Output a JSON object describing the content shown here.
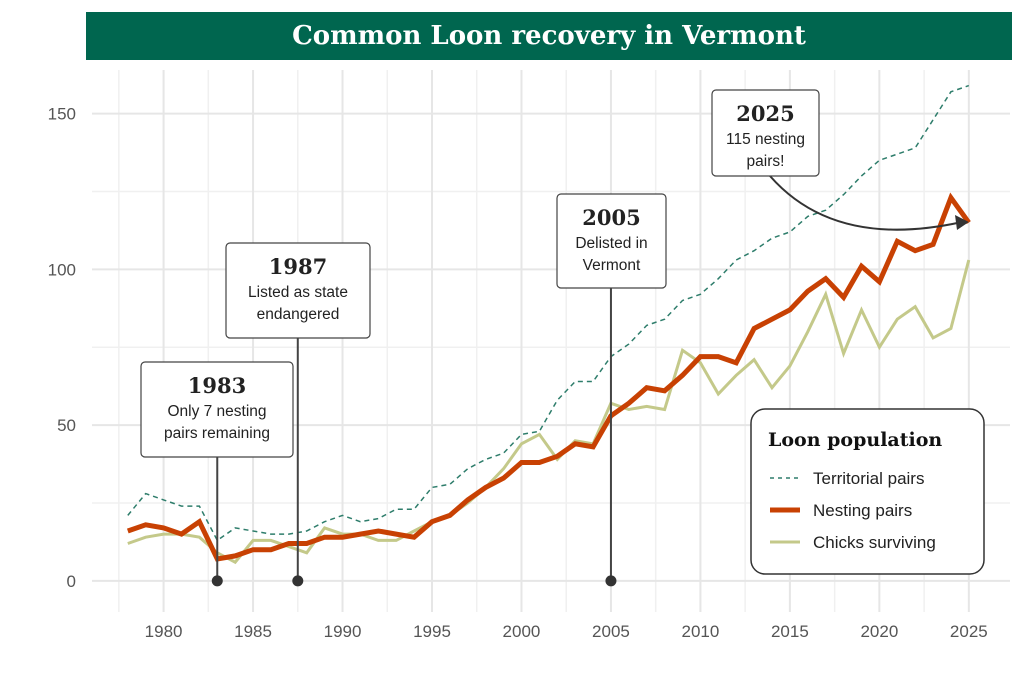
{
  "chart_data": {
    "type": "line",
    "title": "Common Loon recovery in Vermont",
    "xlabel": "",
    "ylabel": "",
    "xlim": [
      1976,
      2027.3
    ],
    "ylim": [
      -10,
      164
    ],
    "grid": true,
    "x_ticks": [
      "1980",
      "1985",
      "1990",
      "1995",
      "2000",
      "2005",
      "2010",
      "2015",
      "2020",
      "2025"
    ],
    "y_ticks": [
      "0",
      "50",
      "100",
      "150"
    ],
    "x": [
      1978,
      1979,
      1980,
      1981,
      1982,
      1983,
      1984,
      1985,
      1986,
      1987,
      1988,
      1989,
      1990,
      1991,
      1992,
      1993,
      1994,
      1995,
      1996,
      1997,
      1998,
      1999,
      2000,
      2001,
      2002,
      2003,
      2004,
      2005,
      2006,
      2007,
      2008,
      2009,
      2010,
      2011,
      2012,
      2013,
      2014,
      2015,
      2016,
      2017,
      2018,
      2019,
      2020,
      2021,
      2022,
      2023,
      2024,
      2025
    ],
    "series": [
      {
        "name": "Territorial pairs",
        "color": "#2e7d6b",
        "style": "dashed",
        "values": [
          21,
          28,
          26,
          24,
          24,
          13,
          17,
          16,
          15,
          15,
          16,
          19,
          21,
          19,
          20,
          23,
          23,
          30,
          31,
          36,
          39,
          41,
          47,
          48,
          58,
          64,
          64,
          72,
          76,
          82,
          84,
          90,
          92,
          97,
          103,
          106,
          110,
          112,
          117,
          119,
          124,
          130,
          135,
          137,
          139,
          148,
          157,
          159
        ]
      },
      {
        "name": "Nesting pairs",
        "color": "#c84103",
        "style": "thick",
        "values": [
          16,
          18,
          17,
          15,
          19,
          7,
          8,
          10,
          10,
          12,
          12,
          14,
          14,
          15,
          16,
          15,
          14,
          19,
          21,
          26,
          30,
          33,
          38,
          38,
          40,
          44,
          43,
          53,
          57,
          62,
          61,
          66,
          72,
          72,
          70,
          81,
          84,
          87,
          93,
          97,
          91,
          101,
          96,
          109,
          106,
          108,
          123,
          115
        ]
      },
      {
        "name": "Chicks surviving",
        "color": "#c4c98a",
        "style": "solid",
        "values": [
          12,
          14,
          15,
          15,
          14,
          9,
          6,
          13,
          13,
          11,
          9,
          17,
          15,
          15,
          13,
          13,
          16,
          19,
          21,
          25,
          30,
          36,
          44,
          47,
          39,
          45,
          44,
          57,
          55,
          56,
          55,
          74,
          70,
          60,
          66,
          71,
          62,
          69,
          80,
          92,
          73,
          87,
          75,
          84,
          88,
          78,
          81,
          103
        ]
      }
    ],
    "legend": {
      "title": "Loon population",
      "position": "bottom-right"
    },
    "annotations": [
      {
        "year": "1983",
        "text": [
          "Only 7 nesting",
          "pairs remaining"
        ],
        "x": 1983
      },
      {
        "year": "1987",
        "text": [
          "Listed as state",
          "endangered"
        ],
        "x": 1987.5
      },
      {
        "year": "2005",
        "text": [
          "Delisted in",
          "Vermont"
        ],
        "x": 2005
      },
      {
        "year": "2025",
        "text": [
          "115 nesting",
          "pairs!"
        ],
        "x": 2025,
        "value": 115
      }
    ]
  }
}
